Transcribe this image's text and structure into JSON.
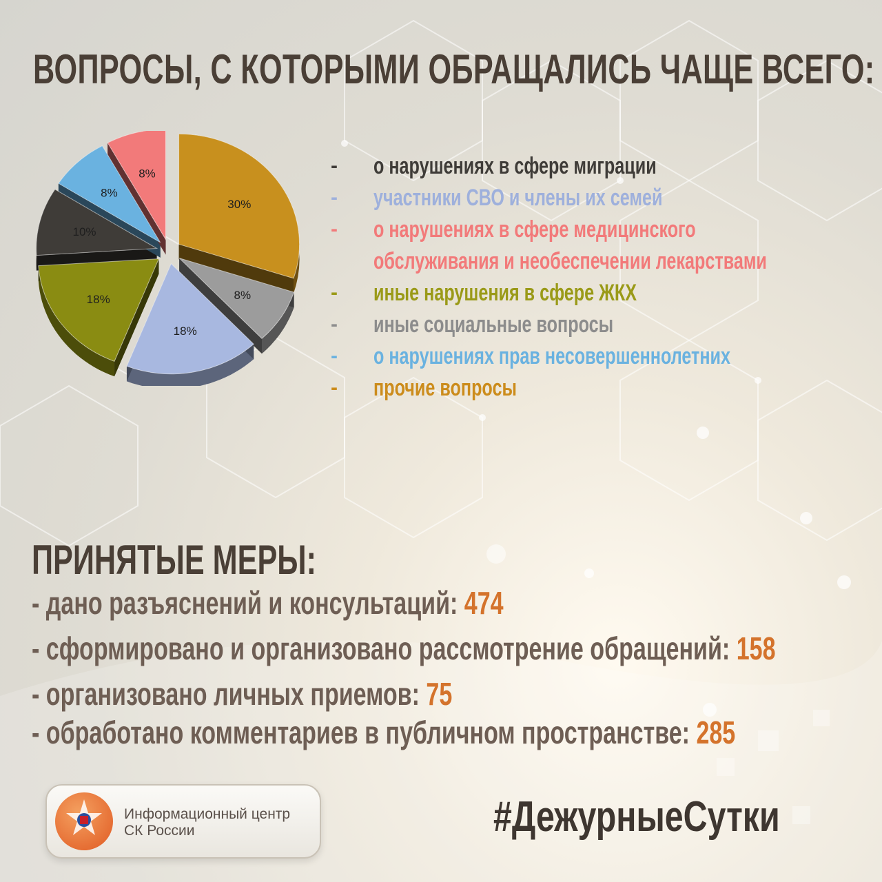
{
  "title": "ВОПРОСЫ, С КОТОРЫМИ ОБРАЩАЛИСЬ ЧАЩЕ ВСЕГО:",
  "colors": {
    "title": "#4a3f36",
    "number_accent": "#d4732c",
    "text_muted": "#6e5e54"
  },
  "chart_data": {
    "type": "pie",
    "slices": [
      {
        "label": "прочие вопросы",
        "value": 30,
        "value_label": "30%",
        "color": "#c8901e"
      },
      {
        "label": "иные социальные вопросы",
        "value": 8,
        "value_label": "8%",
        "color": "#9c9c9c"
      },
      {
        "label": "участники СВО и члены их семей",
        "value": 18,
        "value_label": "18%",
        "color": "#a8b8e0"
      },
      {
        "label": "иные нарушения в сфере ЖКХ",
        "value": 18,
        "value_label": "18%",
        "color": "#8a8c12"
      },
      {
        "label": "о нарушениях в сфере миграции",
        "value": 10,
        "value_label": "10%",
        "color": "#3f3c38"
      },
      {
        "label": "о нарушениях прав несовершеннолетних",
        "value": 8,
        "value_label": "8%",
        "color": "#6ab2e0"
      },
      {
        "label": "о нарушениях в сфере медицинского обслуживания и необеспечении лекарствами",
        "value": 8,
        "value_label": "8%",
        "color": "#f27a7a"
      }
    ]
  },
  "legend": [
    {
      "dash": "-",
      "lines": [
        "о нарушениях в сфере миграции"
      ],
      "color": "#3f3c38"
    },
    {
      "dash": "-",
      "lines": [
        "участники СВО и члены их семей"
      ],
      "color": "#9eb0dc"
    },
    {
      "dash": "-",
      "lines": [
        "о нарушениях в сфере медицинского",
        "обслуживания и необеспечении лекарствами"
      ],
      "color": "#f27a7a"
    },
    {
      "dash": "-",
      "lines": [
        "иные нарушения в сфере ЖКХ"
      ],
      "color": "#9a9a18"
    },
    {
      "dash": "-",
      "lines": [
        "иные социальные вопросы"
      ],
      "color": "#8c8c8c"
    },
    {
      "dash": "-",
      "lines": [
        "о нарушениях прав несовершеннолетних"
      ],
      "color": "#6ab2e0"
    },
    {
      "dash": "-",
      "lines": [
        "прочие вопросы"
      ],
      "color": "#cc8c1c"
    }
  ],
  "measures": {
    "title": "ПРИНЯТЫЕ МЕРЫ:",
    "items": [
      {
        "text": "- дано разъяснений и консультаций: ",
        "value": "474"
      },
      {
        "text": "- сформировано и организовано рассмотрение обращений: ",
        "value": "158"
      },
      {
        "text": "- организовано личных приемов: ",
        "value": "75"
      },
      {
        "text": "- обработано комментариев в публичном пространстве: ",
        "value": "285"
      }
    ]
  },
  "logo": {
    "line1": "Информационный центр",
    "line2": "СК России"
  },
  "hashtag": "#ДежурныеСутки"
}
